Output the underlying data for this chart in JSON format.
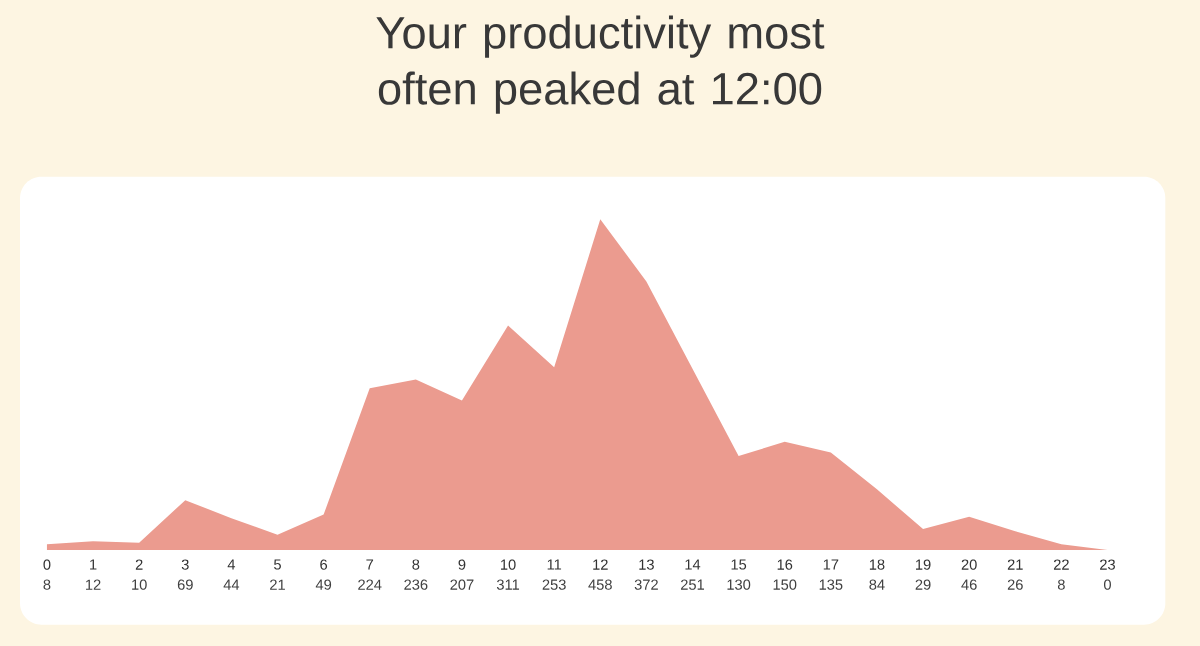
{
  "chart_data": {
    "type": "area",
    "title": "Your productivity most often peaked at 12:00",
    "categories": [
      "0",
      "1",
      "2",
      "3",
      "4",
      "5",
      "6",
      "7",
      "8",
      "9",
      "10",
      "11",
      "12",
      "13",
      "14",
      "15",
      "16",
      "17",
      "18",
      "19",
      "20",
      "21",
      "22",
      "23"
    ],
    "values": [
      8,
      12,
      10,
      69,
      44,
      21,
      49,
      224,
      236,
      207,
      311,
      253,
      458,
      372,
      251,
      130,
      150,
      135,
      84,
      29,
      46,
      26,
      8,
      0
    ],
    "color": "#eb9b8f",
    "data_labels": true
  }
}
